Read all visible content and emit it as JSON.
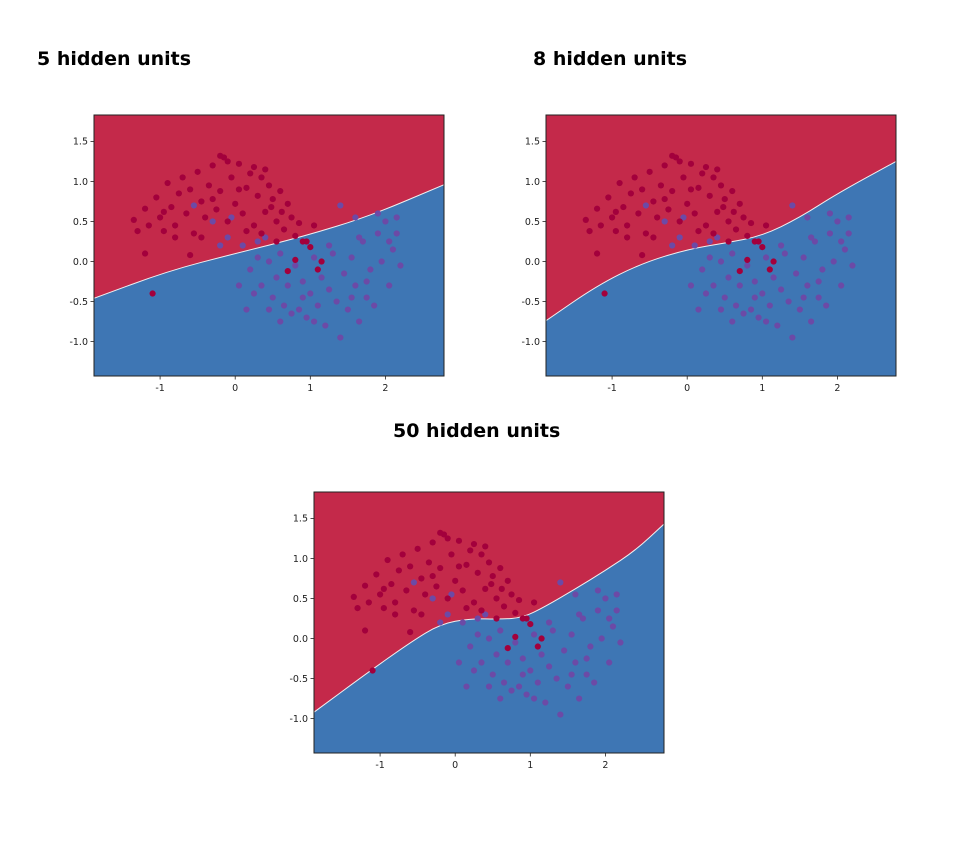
{
  "colors": {
    "red_region": "#c4294a",
    "blue_region": "#3e76b4",
    "boundary": "#f0f0f0",
    "red_point": "#a3003c",
    "blue_point": "#6c4aa6",
    "frame": "#222222"
  },
  "chart_data": [
    {
      "type": "scatter",
      "title": "5 hidden units",
      "xlim": [
        -1.88,
        2.78
      ],
      "ylim": [
        -1.43,
        1.83
      ],
      "xticks": [
        "-1",
        "0",
        "1",
        "2"
      ],
      "yticks": [
        "-1.0",
        "-0.5",
        "0.0",
        "0.5",
        "1.0",
        "1.5"
      ],
      "decision_boundary": {
        "x": [
          -1.88,
          -0.9,
          0.0,
          0.9,
          1.8,
          2.78
        ],
        "y": [
          -0.46,
          -0.12,
          0.1,
          0.31,
          0.57,
          0.96
        ]
      }
    },
    {
      "type": "scatter",
      "title": "8 hidden units",
      "xlim": [
        -1.88,
        2.78
      ],
      "ylim": [
        -1.43,
        1.83
      ],
      "xticks": [
        "-1",
        "0",
        "1",
        "2"
      ],
      "yticks": [
        "-1.0",
        "-0.5",
        "0.0",
        "0.5",
        "1.0",
        "1.5"
      ],
      "decision_boundary": {
        "x": [
          -1.88,
          -1.2,
          -0.6,
          0.0,
          0.5,
          1.0,
          1.5,
          2.0,
          2.78
        ],
        "y": [
          -0.74,
          -0.3,
          -0.02,
          0.15,
          0.23,
          0.32,
          0.55,
          0.85,
          1.25
        ]
      }
    },
    {
      "type": "scatter",
      "title": "50 hidden units",
      "xlim": [
        -1.88,
        2.78
      ],
      "ylim": [
        -1.43,
        1.83
      ],
      "xticks": [
        "-1",
        "0",
        "1",
        "2"
      ],
      "yticks": [
        "-1.0",
        "-0.5",
        "0.0",
        "0.5",
        "1.0",
        "1.5"
      ],
      "decision_boundary": {
        "x": [
          -1.88,
          -1.2,
          -0.6,
          -0.2,
          0.2,
          0.6,
          0.9,
          1.2,
          1.6,
          2.0,
          2.4,
          2.78
        ],
        "y": [
          -0.92,
          -0.45,
          -0.05,
          0.18,
          0.25,
          0.24,
          0.26,
          0.4,
          0.62,
          0.85,
          1.1,
          1.43
        ]
      }
    }
  ],
  "points": {
    "red": [
      [
        -1.35,
        0.52
      ],
      [
        -1.3,
        0.38
      ],
      [
        -1.2,
        0.66
      ],
      [
        -1.15,
        0.45
      ],
      [
        -1.05,
        0.8
      ],
      [
        -1.0,
        0.55
      ],
      [
        -0.95,
        0.38
      ],
      [
        -0.9,
        0.98
      ],
      [
        -0.85,
        0.68
      ],
      [
        -0.8,
        0.45
      ],
      [
        -0.75,
        0.85
      ],
      [
        -0.7,
        1.05
      ],
      [
        -0.65,
        0.6
      ],
      [
        -0.6,
        0.9
      ],
      [
        -0.55,
        0.35
      ],
      [
        -0.5,
        1.12
      ],
      [
        -0.45,
        0.75
      ],
      [
        -0.4,
        0.55
      ],
      [
        -0.35,
        0.95
      ],
      [
        -0.3,
        1.2
      ],
      [
        -0.25,
        0.65
      ],
      [
        -0.2,
        0.88
      ],
      [
        -0.15,
        1.3
      ],
      [
        -0.1,
        0.5
      ],
      [
        -0.05,
        1.05
      ],
      [
        0.0,
        0.72
      ],
      [
        0.05,
        1.22
      ],
      [
        0.1,
        0.6
      ],
      [
        0.15,
        0.92
      ],
      [
        0.2,
        1.1
      ],
      [
        0.25,
        0.45
      ],
      [
        0.3,
        0.82
      ],
      [
        0.35,
        1.05
      ],
      [
        0.4,
        0.62
      ],
      [
        0.45,
        0.95
      ],
      [
        0.5,
        0.78
      ],
      [
        0.55,
        0.5
      ],
      [
        0.6,
        0.88
      ],
      [
        0.65,
        0.4
      ],
      [
        0.7,
        0.72
      ],
      [
        0.75,
        0.55
      ],
      [
        0.8,
        0.32
      ],
      [
        0.85,
        0.48
      ],
      [
        0.95,
        0.25
      ],
      [
        1.05,
        0.45
      ],
      [
        -1.1,
        -0.4
      ],
      [
        0.55,
        0.25
      ],
      [
        0.8,
        0.02
      ],
      [
        1.0,
        0.18
      ],
      [
        0.9,
        0.25
      ],
      [
        1.15,
        0.0
      ],
      [
        0.7,
        -0.12
      ],
      [
        1.1,
        -0.1
      ],
      [
        -0.6,
        0.08
      ],
      [
        -1.2,
        0.1
      ],
      [
        -0.2,
        1.32
      ],
      [
        -0.1,
        1.25
      ],
      [
        0.25,
        1.18
      ],
      [
        0.4,
        1.15
      ],
      [
        -0.8,
        0.3
      ],
      [
        -0.45,
        0.3
      ],
      [
        0.15,
        0.38
      ],
      [
        0.35,
        0.35
      ],
      [
        -0.95,
        0.62
      ],
      [
        0.62,
        0.62
      ],
      [
        -0.3,
        0.78
      ],
      [
        0.05,
        0.9
      ],
      [
        0.48,
        0.68
      ]
    ],
    "blue": [
      [
        -0.55,
        0.7
      ],
      [
        -0.3,
        0.5
      ],
      [
        -0.1,
        0.3
      ],
      [
        -0.05,
        0.55
      ],
      [
        0.1,
        0.2
      ],
      [
        0.2,
        -0.1
      ],
      [
        0.3,
        0.05
      ],
      [
        0.35,
        -0.3
      ],
      [
        0.45,
        0.0
      ],
      [
        0.5,
        -0.45
      ],
      [
        0.55,
        -0.2
      ],
      [
        0.6,
        0.1
      ],
      [
        0.65,
        -0.55
      ],
      [
        0.7,
        -0.3
      ],
      [
        0.8,
        -0.05
      ],
      [
        0.85,
        -0.6
      ],
      [
        0.9,
        -0.25
      ],
      [
        0.95,
        -0.7
      ],
      [
        1.0,
        -0.4
      ],
      [
        1.05,
        0.05
      ],
      [
        1.1,
        -0.55
      ],
      [
        1.15,
        -0.2
      ],
      [
        1.2,
        -0.8
      ],
      [
        1.25,
        -0.35
      ],
      [
        1.3,
        0.1
      ],
      [
        1.35,
        -0.5
      ],
      [
        1.4,
        -0.95
      ],
      [
        1.45,
        -0.15
      ],
      [
        1.5,
        -0.6
      ],
      [
        1.55,
        0.05
      ],
      [
        1.6,
        -0.3
      ],
      [
        1.65,
        -0.75
      ],
      [
        1.7,
        0.25
      ],
      [
        1.75,
        -0.45
      ],
      [
        1.8,
        -0.1
      ],
      [
        1.85,
        -0.55
      ],
      [
        1.9,
        0.35
      ],
      [
        1.95,
        0.0
      ],
      [
        2.0,
        0.5
      ],
      [
        2.05,
        -0.3
      ],
      [
        2.1,
        0.15
      ],
      [
        2.15,
        0.55
      ],
      [
        2.2,
        -0.05
      ],
      [
        1.4,
        0.7
      ],
      [
        1.9,
        0.6
      ],
      [
        2.05,
        0.25
      ],
      [
        0.15,
        -0.6
      ],
      [
        0.45,
        -0.6
      ],
      [
        0.05,
        -0.3
      ],
      [
        0.25,
        -0.4
      ],
      [
        0.75,
        -0.65
      ],
      [
        1.05,
        -0.75
      ],
      [
        1.55,
        -0.45
      ],
      [
        0.4,
        0.3
      ],
      [
        1.65,
        0.3
      ],
      [
        -0.2,
        0.2
      ],
      [
        0.6,
        -0.75
      ],
      [
        1.25,
        0.2
      ],
      [
        0.9,
        -0.45
      ],
      [
        2.15,
        0.35
      ],
      [
        1.75,
        -0.25
      ],
      [
        0.3,
        0.25
      ],
      [
        1.6,
        0.55
      ]
    ]
  },
  "panels": [
    {
      "title": "5 hidden units"
    },
    {
      "title": "8 hidden units"
    },
    {
      "title": "50 hidden units"
    }
  ]
}
